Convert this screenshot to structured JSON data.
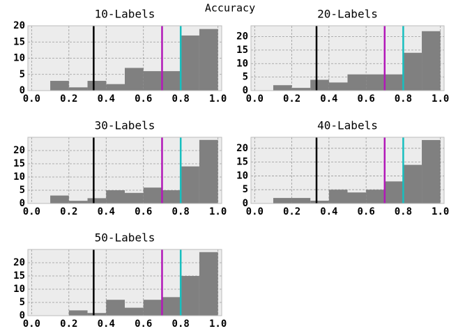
{
  "title": "Accuracy",
  "chart_data": [
    {
      "type": "histogram",
      "title": "10-Labels",
      "bins": [
        0,
        0.1,
        0.2,
        0.3,
        0.4,
        0.5,
        0.6,
        0.7,
        0.8,
        0.9,
        1.0
      ],
      "values": [
        0,
        3,
        1,
        3,
        2,
        7,
        6,
        6,
        17,
        19
      ],
      "color": "#808080",
      "xlim": [
        -0.02,
        1.02
      ],
      "ylim": [
        0,
        20
      ],
      "xticks": [
        {
          "value": 0,
          "label": "0.0"
        },
        0.2,
        0.4,
        0.6,
        0.8,
        {
          "value": 1,
          "label": "1.0"
        }
      ],
      "yticks": [
        0,
        5,
        10,
        15,
        20
      ],
      "grid": true,
      "vlines": [
        {
          "value": 0.333,
          "color": "#000000"
        },
        {
          "value": 0.7,
          "color": "#b217b8"
        },
        {
          "value": 0.8,
          "color": "#17bfbf"
        }
      ]
    },
    {
      "type": "histogram",
      "title": "20-Labels",
      "bins": [
        0,
        0.1,
        0.2,
        0.3,
        0.4,
        0.5,
        0.6,
        0.7,
        0.8,
        0.9,
        1.0
      ],
      "values": [
        0,
        2,
        1,
        4,
        3,
        6,
        6,
        6,
        14,
        22
      ],
      "color": "#808080",
      "xlim": [
        -0.02,
        1.02
      ],
      "ylim": [
        0,
        24
      ],
      "xticks": [
        {
          "value": 0,
          "label": "0.0"
        },
        0.2,
        0.4,
        0.6,
        0.8,
        {
          "value": 1,
          "label": "1.0"
        }
      ],
      "yticks": [
        0,
        5,
        10,
        15,
        20
      ],
      "grid": true,
      "vlines": [
        {
          "value": 0.333,
          "color": "#000000"
        },
        {
          "value": 0.7,
          "color": "#b217b8"
        },
        {
          "value": 0.8,
          "color": "#17bfbf"
        }
      ]
    },
    {
      "type": "histogram",
      "title": "30-Labels",
      "bins": [
        0,
        0.1,
        0.2,
        0.3,
        0.4,
        0.5,
        0.6,
        0.7,
        0.8,
        0.9,
        1.0
      ],
      "values": [
        0,
        3,
        1,
        2,
        5,
        4,
        6,
        5,
        14,
        24
      ],
      "color": "#808080",
      "xlim": [
        -0.02,
        1.02
      ],
      "ylim": [
        0,
        25
      ],
      "xticks": [
        {
          "value": 0,
          "label": "0.0"
        },
        0.2,
        0.4,
        0.6,
        0.8,
        {
          "value": 1,
          "label": "1.0"
        }
      ],
      "yticks": [
        0,
        5,
        10,
        15,
        20
      ],
      "grid": true,
      "vlines": [
        {
          "value": 0.333,
          "color": "#000000"
        },
        {
          "value": 0.7,
          "color": "#b217b8"
        },
        {
          "value": 0.8,
          "color": "#17bfbf"
        }
      ]
    },
    {
      "type": "histogram",
      "title": "40-Labels",
      "bins": [
        0,
        0.1,
        0.2,
        0.3,
        0.4,
        0.5,
        0.6,
        0.7,
        0.8,
        0.9,
        1.0
      ],
      "values": [
        0,
        2,
        2,
        1,
        5,
        4,
        5,
        8,
        14,
        23
      ],
      "color": "#808080",
      "xlim": [
        -0.02,
        1.02
      ],
      "ylim": [
        0,
        24
      ],
      "xticks": [
        {
          "value": 0,
          "label": "0.0"
        },
        0.2,
        0.4,
        0.6,
        0.8,
        {
          "value": 1,
          "label": "1.0"
        }
      ],
      "yticks": [
        0,
        5,
        10,
        15,
        20
      ],
      "grid": true,
      "vlines": [
        {
          "value": 0.333,
          "color": "#000000"
        },
        {
          "value": 0.7,
          "color": "#b217b8"
        },
        {
          "value": 0.8,
          "color": "#17bfbf"
        }
      ]
    },
    {
      "type": "histogram",
      "title": "50-Labels",
      "bins": [
        0,
        0.1,
        0.2,
        0.3,
        0.4,
        0.5,
        0.6,
        0.7,
        0.8,
        0.9,
        1.0
      ],
      "values": [
        0,
        0,
        2,
        1,
        6,
        3,
        6,
        7,
        15,
        24
      ],
      "color": "#808080",
      "xlim": [
        -0.02,
        1.02
      ],
      "ylim": [
        0,
        25
      ],
      "xticks": [
        {
          "value": 0,
          "label": "0.0"
        },
        0.2,
        0.4,
        0.6,
        0.8,
        {
          "value": 1,
          "label": "1.0"
        }
      ],
      "yticks": [
        0,
        5,
        10,
        15,
        20
      ],
      "grid": true,
      "vlines": [
        {
          "value": 0.333,
          "color": "#000000"
        },
        {
          "value": 0.7,
          "color": "#b217b8"
        },
        {
          "value": 0.8,
          "color": "#17bfbf"
        }
      ]
    }
  ]
}
